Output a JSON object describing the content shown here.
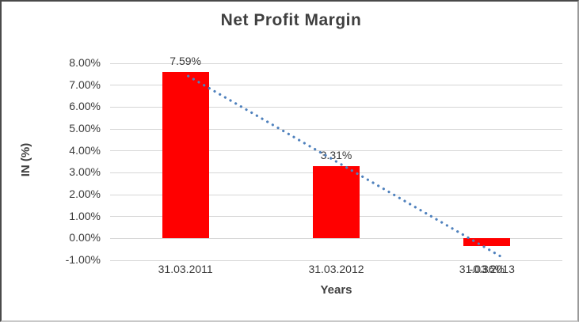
{
  "chart": {
    "title": "Net Profit Margin",
    "y_axis_title": "IN (%)",
    "x_axis_title": "Years"
  },
  "chart_data": {
    "type": "bar",
    "title": "Net Profit Margin",
    "xlabel": "Years",
    "ylabel": "IN (%)",
    "categories": [
      "31.03.2011",
      "31.03.2012",
      "31.03.2013"
    ],
    "values": [
      7.59,
      3.31,
      -0.36
    ],
    "data_labels": [
      "7.59%",
      "3.31%",
      "-0.36%"
    ],
    "y_tick_labels": [
      "8.00%",
      "7.00%",
      "6.00%",
      "5.00%",
      "4.00%",
      "3.00%",
      "2.00%",
      "1.00%",
      "0.00%",
      "-1.00%"
    ],
    "y_tick_values": [
      8,
      7,
      6,
      5,
      4,
      3,
      2,
      1,
      0,
      -1
    ],
    "ylim": [
      -1,
      8
    ],
    "grid": true,
    "legend": false,
    "bar_color": "#ff0000",
    "text_color": "#3a3a3a",
    "gridline_color": "#d6d6d6",
    "trendline": {
      "type": "linear",
      "style": "dotted",
      "color": "#4f81bd"
    }
  }
}
